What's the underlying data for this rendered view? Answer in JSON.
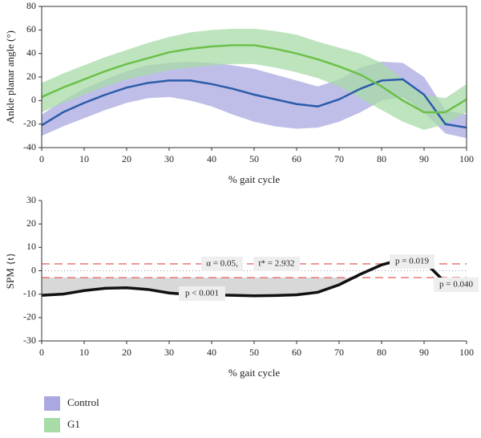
{
  "chart_data": [
    {
      "type": "line",
      "xlabel": "% gait cycle",
      "ylabel": "Ankle planar angle (°)",
      "x": [
        0,
        5,
        10,
        15,
        20,
        25,
        30,
        35,
        40,
        45,
        50,
        55,
        60,
        65,
        70,
        75,
        80,
        85,
        90,
        95,
        100
      ],
      "xlim": [
        0,
        100
      ],
      "xticks": [
        0,
        10,
        20,
        30,
        40,
        50,
        60,
        70,
        80,
        90,
        100
      ],
      "ylim": [
        -40,
        80
      ],
      "yticks": [
        -40,
        -20,
        0,
        20,
        40,
        60,
        80
      ],
      "series": [
        {
          "name": "Control",
          "color": "#2b5caa",
          "band_color": "#a9a8e0",
          "values": [
            -21,
            -10,
            -2,
            5,
            11,
            15,
            17,
            17,
            14,
            10,
            5,
            1,
            -3,
            -5,
            1,
            10,
            17,
            18,
            5,
            -20,
            -23
          ],
          "lower": [
            -30,
            -22,
            -15,
            -8,
            -2,
            2,
            3,
            0,
            -5,
            -12,
            -18,
            -22,
            -24,
            -23,
            -18,
            -10,
            0,
            3,
            -10,
            -28,
            -32
          ],
          "upper": [
            -12,
            0,
            10,
            18,
            25,
            30,
            32,
            33,
            32,
            30,
            27,
            22,
            17,
            12,
            18,
            28,
            33,
            32,
            20,
            -8,
            -12
          ]
        },
        {
          "name": "G1",
          "color": "#6cc04a",
          "band_color": "#a8dba8",
          "values": [
            3,
            11,
            18,
            25,
            31,
            36,
            41,
            44,
            46,
            47,
            47,
            44,
            40,
            35,
            29,
            22,
            12,
            0,
            -10,
            -10,
            1
          ],
          "lower": [
            -10,
            -2,
            5,
            12,
            18,
            22,
            26,
            28,
            30,
            31,
            31,
            28,
            24,
            19,
            12,
            2,
            -8,
            -18,
            -25,
            -20,
            -10
          ],
          "upper": [
            15,
            23,
            30,
            37,
            43,
            49,
            54,
            58,
            60,
            61,
            61,
            59,
            56,
            50,
            45,
            40,
            32,
            18,
            5,
            2,
            14
          ]
        }
      ]
    },
    {
      "type": "spm",
      "xlabel": "% gait cycle",
      "ylabel": "SPM {t}",
      "x": [
        0,
        5,
        10,
        15,
        20,
        25,
        30,
        35,
        40,
        45,
        50,
        55,
        60,
        65,
        70,
        75,
        80,
        85,
        90,
        95,
        100
      ],
      "xlim": [
        0,
        100
      ],
      "xticks": [
        0,
        10,
        20,
        30,
        40,
        50,
        60,
        70,
        80,
        90,
        100
      ],
      "ylim": [
        -30,
        30
      ],
      "yticks": [
        -30,
        -20,
        -10,
        0,
        10,
        20,
        30
      ],
      "threshold": 2.932,
      "zero_line": true,
      "series": [
        {
          "color": "#111111",
          "values": [
            -10.5,
            -10,
            -8.5,
            -7.5,
            -7.3,
            -8,
            -9.5,
            -10.2,
            -10.3,
            -10.5,
            -10.7,
            -10.6,
            -10.3,
            -9.2,
            -6,
            -1.5,
            2.5,
            5,
            4,
            -5,
            null
          ]
        }
      ],
      "annotations": [
        "α = 0.05,",
        "t* = 2.932",
        "p < 0.001",
        "p = 0.019",
        "p = 0.040"
      ]
    }
  ]
}
